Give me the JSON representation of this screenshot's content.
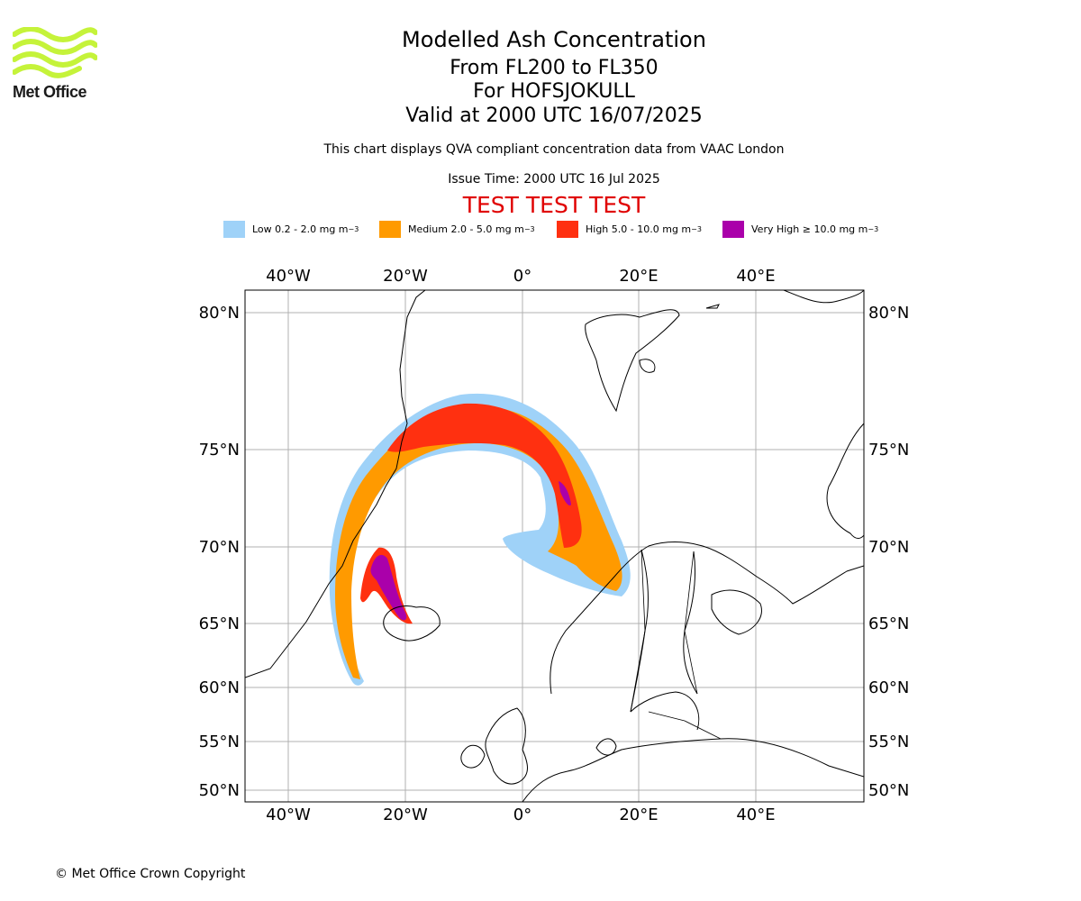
{
  "brand": {
    "name": "Met Office",
    "logo_color": "#c5f33a"
  },
  "header": {
    "title": "Modelled Ash Concentration",
    "levels": "From FL200 to FL350",
    "volcano": "For HOFSJOKULL",
    "valid": "Valid at 2000 UTC 16/07/2025",
    "description": "This chart displays QVA compliant concentration data from VAAC London",
    "issue_time": "Issue Time: 2000 UTC 16 Jul 2025",
    "test_banner": "TEST TEST TEST",
    "test_color": "#e00000"
  },
  "legend": [
    {
      "label": "Low 0.2 - 2.0 mg m",
      "unit_sup": "−3",
      "color": "#9fd2f8"
    },
    {
      "label": "Medium 2.0 - 5.0 mg m",
      "unit_sup": "−3",
      "color": "#ff9a00"
    },
    {
      "label": "High 5.0 - 10.0 mg m",
      "unit_sup": "−3",
      "color": "#ff3010"
    },
    {
      "label": "Very High  ≥  10.0 mg m",
      "unit_sup": "−3",
      "color": "#aa00aa"
    }
  ],
  "map": {
    "lon_labels": [
      "40°W",
      "20°W",
      "0°",
      "20°E",
      "40°E"
    ],
    "lat_labels": [
      "80°N",
      "75°N",
      "70°N",
      "65°N",
      "60°N",
      "55°N",
      "50°N"
    ],
    "grid": true
  },
  "footer": {
    "copyright": "© Met Office Crown Copyright"
  }
}
